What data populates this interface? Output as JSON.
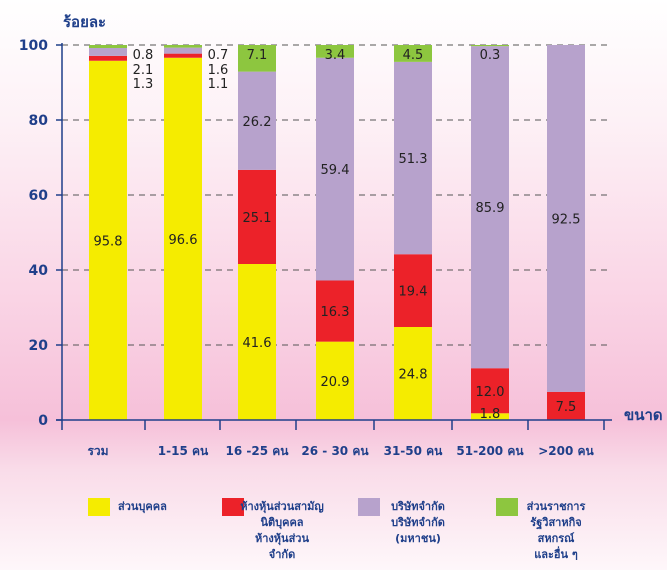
{
  "chart_data": {
    "type": "bar",
    "stacked": true,
    "ylabel": "ร้อยละ",
    "xlabel": "ขนาด",
    "ylim": [
      0,
      100
    ],
    "yticks": [
      0,
      20,
      40,
      60,
      80,
      100
    ],
    "grid": "dashed horizontal",
    "categories": [
      "รวม",
      "1-15 คน",
      "16 -25 คน",
      "26 - 30 คน",
      "31-50 คน",
      "51-200 คน",
      ">200 คน"
    ],
    "series": [
      {
        "name": "ส่วนบุคคล",
        "color": "#f5ec00",
        "values": [
          95.8,
          96.6,
          41.6,
          20.9,
          24.8,
          1.8,
          0
        ],
        "labels": [
          "95.8",
          "96.6",
          "41.6",
          "20.9",
          "24.8",
          "1.8",
          ""
        ]
      },
      {
        "name": "ห้างหุ้นส่วนสามัญ นิติบุคคล ห้างหุ้นส่วน จำกัด",
        "color": "#ec2229",
        "values": [
          1.3,
          1.1,
          25.1,
          16.3,
          19.4,
          12.0,
          7.5
        ],
        "labels": [
          "1.3",
          "1.1",
          "25.1",
          "16.3",
          "19.4",
          "12.0",
          "7.5"
        ]
      },
      {
        "name": "บริษัทจำกัด บริษัทจำกัด (มหาชน)",
        "color": "#b7a2cc",
        "values": [
          2.1,
          1.6,
          26.2,
          59.4,
          51.3,
          85.9,
          92.5
        ],
        "labels": [
          "2.1",
          "1.6",
          "26.2",
          "59.4",
          "51.3",
          "85.9",
          "92.5"
        ]
      },
      {
        "name": "ส่วนราชการ รัฐวิสาหกิจ สหกรณ์ และอื่น ๆ",
        "color": "#8dc63f",
        "values": [
          0.8,
          0.7,
          7.1,
          3.4,
          4.5,
          0.3,
          0
        ],
        "labels": [
          "0.8",
          "0.7",
          "7.1",
          "3.4",
          "4.5",
          "0.3",
          ""
        ]
      }
    ]
  },
  "legend": [
    {
      "lines": [
        "ส่วนบุคคล"
      ],
      "color": "#f5ec00"
    },
    {
      "lines": [
        "ห้างหุ้นส่วนสามัญ",
        "นิติบุคคล",
        "ห้างหุ้นส่วน",
        "จำกัด"
      ],
      "color": "#ec2229"
    },
    {
      "lines": [
        "บริษัทจำกัด",
        "บริษัทจำกัด",
        "(มหาชน)"
      ],
      "color": "#b7a2cc"
    },
    {
      "lines": [
        "ส่วนราชการ",
        "รัฐวิสาหกิจ",
        "สหกรณ์",
        "และอื่น ๆ"
      ],
      "color": "#8dc63f"
    }
  ]
}
